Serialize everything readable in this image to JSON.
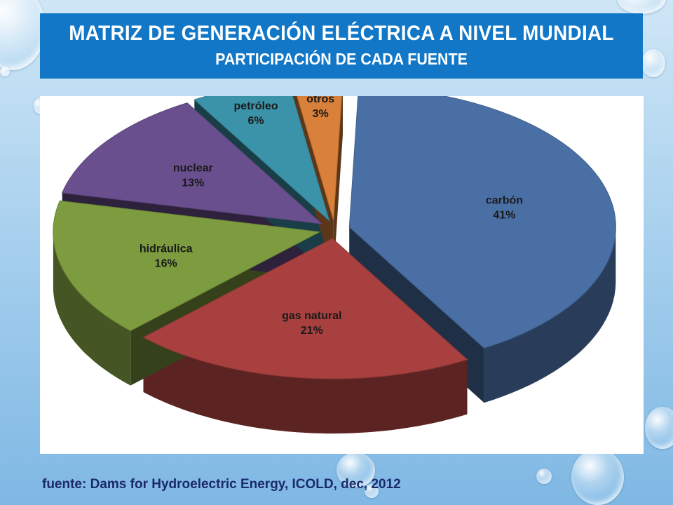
{
  "title": "MATRIZ DE GENERACIÓN ELÉCTRICA A NIVEL MUNDIAL",
  "subtitle": "PARTICIPACIÓN DE CADA FUENTE",
  "source": "fuente: Dams for Hydroelectric Energy, ICOLD, dec, 2012",
  "colors": {
    "title_bg": "#1177c6",
    "carbon": "#4a6fa5",
    "gas_natural": "#a7403f",
    "hidraulica": "#7d9b3f",
    "nuclear": "#6a4f8e",
    "petroleo": "#3b93aa",
    "otros": "#d9803a"
  },
  "chart_data": {
    "type": "pie",
    "style": "3d-exploded",
    "slices": [
      {
        "label": "carbón",
        "value": 41,
        "value_label": "41%",
        "color": "#4a6fa5"
      },
      {
        "label": "gas natural",
        "value": 21,
        "value_label": "21%",
        "color": "#a7403f"
      },
      {
        "label": "hidráulica",
        "value": 16,
        "value_label": "16%",
        "color": "#7d9b3f"
      },
      {
        "label": "nuclear",
        "value": 13,
        "value_label": "13%",
        "color": "#6a4f8e"
      },
      {
        "label": "petróleo",
        "value": 6,
        "value_label": "6%",
        "color": "#3b93aa"
      },
      {
        "label": "otros",
        "value": 3,
        "value_label": "3%",
        "color": "#d9803a"
      }
    ],
    "legend": "none"
  }
}
